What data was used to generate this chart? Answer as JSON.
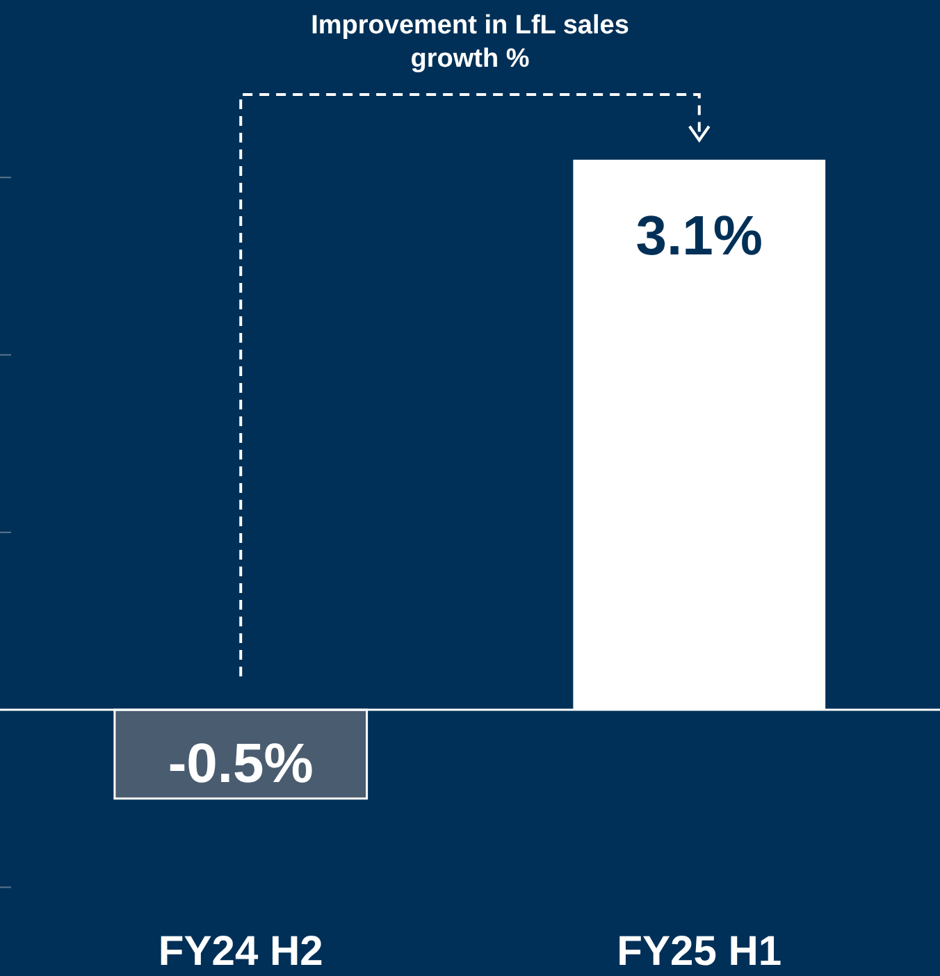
{
  "chart_data": {
    "type": "bar",
    "categories": [
      "FY24 H2",
      "FY25 H1"
    ],
    "values": [
      -0.5,
      3.1
    ],
    "colors": [
      "#4a5c70",
      "#ffffff"
    ],
    "data_labels": true,
    "value_labels": [
      "-0.5%",
      "3.1%"
    ],
    "ylim": [
      -1.5,
      4
    ],
    "yticks": [
      {
        "value": -1,
        "label": null
      },
      {
        "value": 0,
        "label": null
      },
      {
        "value": 1,
        "label": null
      },
      {
        "value": 2,
        "label": null
      },
      {
        "value": 3,
        "label": null
      }
    ],
    "annotations": [
      "Improvement in LfL sales growth %"
    ],
    "grid": false
  }
}
